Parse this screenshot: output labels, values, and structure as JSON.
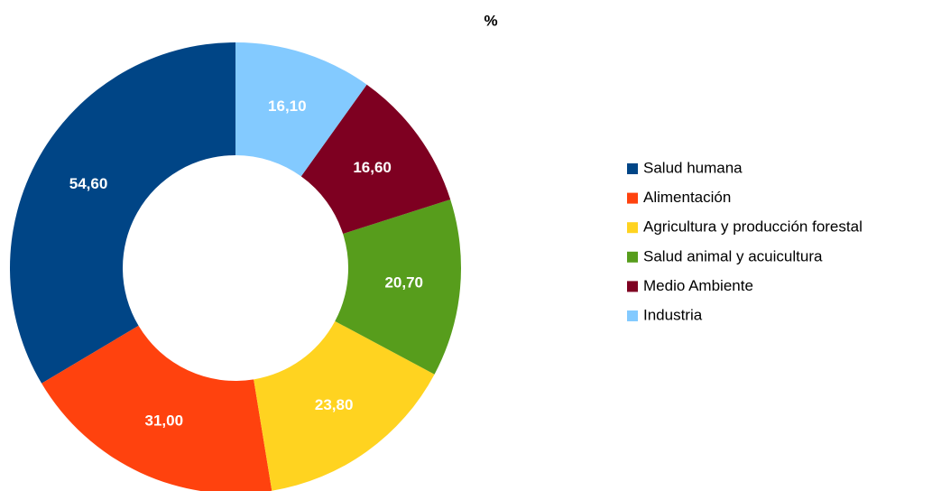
{
  "chart_data": {
    "type": "donut",
    "title": "%",
    "categories": [
      "Salud humana",
      "Alimentación",
      "Agricultura y producción forestal",
      "Salud animal y acuicultura",
      "Medio Ambiente",
      "Industria"
    ],
    "values": [
      54.6,
      31.0,
      23.8,
      20.7,
      16.6,
      16.1
    ],
    "value_labels": [
      "54,60",
      "31,00",
      "23,80",
      "20,70",
      "16,60",
      "16,10"
    ],
    "colors": [
      "#004586",
      "#ff420e",
      "#ffd320",
      "#579d1c",
      "#7e0021",
      "#83caff"
    ],
    "legend": "right"
  }
}
